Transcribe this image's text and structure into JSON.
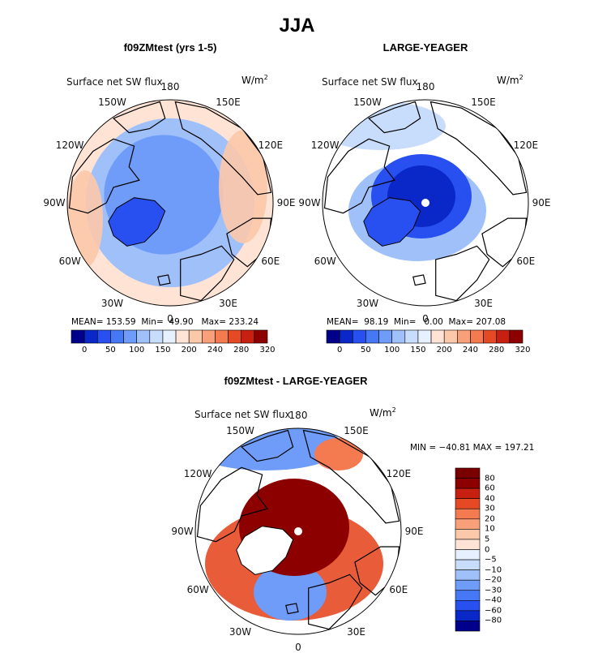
{
  "figure": {
    "title": "JJA",
    "variable": "Surface net SW flux",
    "units_base": "W/m",
    "units_exp": "2"
  },
  "colors": {
    "abs_scale": [
      "#00008b",
      "#0a28c8",
      "#2850f0",
      "#4678f5",
      "#6e9cf8",
      "#a0c0fa",
      "#c8dcfc",
      "#e6f0ff",
      "#ffe4d6",
      "#fcc8aa",
      "#f8a07a",
      "#f47a50",
      "#e64a24",
      "#c82010",
      "#8c0000"
    ],
    "diff_scale": [
      "#00008b",
      "#0a28c8",
      "#2850f0",
      "#4678f5",
      "#6e9cf8",
      "#a0c0fa",
      "#c8dcfc",
      "#e6f0ff",
      "#ffe4d6",
      "#fcc8aa",
      "#f8a07a",
      "#f47a50",
      "#e64a24",
      "#c82010",
      "#8c0000",
      "#7a0000"
    ],
    "land_outline": "#000000"
  },
  "chart_data": [
    {
      "type": "heatmap",
      "projection": "north polar stereographic",
      "title": "f09ZMtest (yrs 1-5)",
      "variable": "Surface net SW flux",
      "stats": {
        "mean_label": "MEAN=",
        "mean": "153.59",
        "min_label": "Min=",
        "min": "49.90",
        "max_label": "Max=",
        "max": "233.24"
      },
      "colorbar_levels": [
        "0",
        "50",
        "100",
        "150",
        "200",
        "240",
        "280",
        "320"
      ],
      "lon_labels": [
        "180",
        "150E",
        "120E",
        "90E",
        "60E",
        "30E",
        "0",
        "30W",
        "60W",
        "90W",
        "120W",
        "150W"
      ]
    },
    {
      "type": "heatmap",
      "projection": "north polar stereographic",
      "title": "LARGE-YEAGER",
      "variable": "Surface net SW flux",
      "stats": {
        "mean_label": "MEAN=",
        "mean": "98.19",
        "min_label": "Min=",
        "min": "0.00",
        "max_label": "Max=",
        "max": "207.08"
      },
      "colorbar_levels": [
        "0",
        "50",
        "100",
        "150",
        "200",
        "240",
        "280",
        "320"
      ],
      "lon_labels": [
        "180",
        "150E",
        "120E",
        "90E",
        "60E",
        "30E",
        "0",
        "30W",
        "60W",
        "90W",
        "120W",
        "150W"
      ]
    },
    {
      "type": "heatmap",
      "projection": "north polar stereographic",
      "title": "f09ZMtest - LARGE-YEAGER",
      "variable": "Surface net SW flux",
      "stats_text": "MIN = −40.81 MAX = 197.21",
      "colorbar_levels": [
        "80",
        "60",
        "40",
        "30",
        "20",
        "10",
        "5",
        "0",
        "−5",
        "−10",
        "−20",
        "−30",
        "−40",
        "−60",
        "−80"
      ],
      "lon_labels": [
        "180",
        "150E",
        "120E",
        "90E",
        "60E",
        "30E",
        "0",
        "30W",
        "60W",
        "90W",
        "120W",
        "150W"
      ]
    }
  ]
}
